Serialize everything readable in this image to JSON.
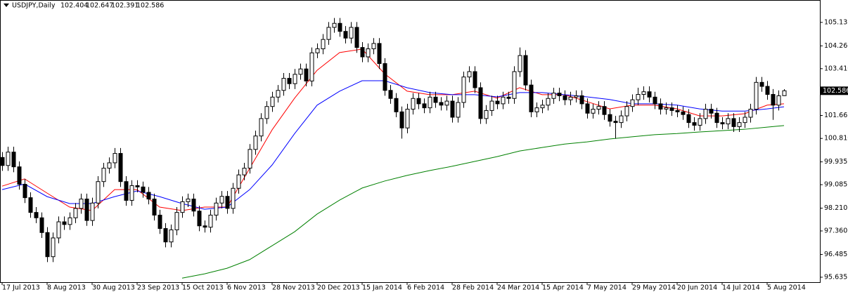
{
  "chart_data": {
    "type": "candlestick",
    "title": "USDJPY,Daily",
    "categories": [
      "17 Jul 2013",
      null,
      null,
      null,
      null,
      null,
      null,
      null,
      "8 Aug 2013",
      null,
      null,
      null,
      null,
      null,
      null,
      null,
      "30 Aug 2013",
      null,
      null,
      null,
      null,
      null,
      null,
      null,
      "23 Sep 2013",
      null,
      null,
      null,
      null,
      null,
      null,
      null,
      "15 Oct 2013",
      null,
      null,
      null,
      null,
      null,
      null,
      null,
      "6 Nov 2013",
      null,
      null,
      null,
      null,
      null,
      null,
      null,
      "28 Nov 2013",
      null,
      null,
      null,
      null,
      null,
      null,
      null,
      "20 Dec 2013",
      null,
      null,
      null,
      null,
      null,
      null,
      null,
      "15 Jan 2014",
      null,
      null,
      null,
      null,
      null,
      null,
      null,
      "6 Feb 2014",
      null,
      null,
      null,
      null,
      null,
      null,
      null,
      "28 Feb 2014",
      null,
      null,
      null,
      null,
      null,
      null,
      null,
      "24 Mar 2014",
      null,
      null,
      null,
      null,
      null,
      null,
      null,
      "15 Apr 2014",
      null,
      null,
      null,
      null,
      null,
      null,
      null,
      "7 May 2014",
      null,
      null,
      null,
      null,
      null,
      null,
      null,
      "29 May 2014",
      null,
      null,
      null,
      null,
      null,
      null,
      null,
      "20 Jun 2014",
      null,
      null,
      null,
      null,
      null,
      null,
      null,
      "14 Jul 2014",
      null,
      null,
      null,
      null,
      null,
      null,
      null,
      "5 Aug 2014",
      null,
      null,
      null
    ],
    "candles": [
      [
        100.1,
        100.3,
        99.6,
        99.8
      ],
      [
        99.8,
        100.5,
        99.6,
        100.3
      ],
      [
        100.3,
        100.5,
        99.55,
        99.75
      ],
      [
        99.75,
        99.95,
        98.9,
        99.1
      ],
      [
        99.1,
        99.3,
        98.4,
        98.6
      ],
      [
        98.6,
        98.8,
        97.85,
        98.05
      ],
      [
        98.05,
        98.25,
        97.65,
        97.85
      ],
      [
        97.85,
        98.05,
        97.1,
        97.3
      ],
      [
        97.3,
        97.5,
        96.2,
        96.4
      ],
      [
        96.4,
        97.3,
        96.2,
        97.1
      ],
      [
        97.1,
        97.9,
        96.9,
        97.7
      ],
      [
        97.7,
        97.9,
        97.4,
        97.6
      ],
      [
        97.6,
        98.05,
        97.4,
        97.85
      ],
      [
        97.85,
        98.4,
        97.65,
        98.2
      ],
      [
        98.2,
        98.75,
        98.0,
        98.55
      ],
      [
        98.55,
        98.75,
        97.55,
        97.75
      ],
      [
        97.75,
        98.6,
        97.55,
        98.4
      ],
      [
        98.4,
        99.4,
        98.2,
        99.2
      ],
      [
        99.2,
        99.9,
        99.0,
        99.7
      ],
      [
        99.7,
        100.1,
        99.5,
        99.9
      ],
      [
        99.9,
        100.45,
        99.7,
        100.25
      ],
      [
        100.25,
        100.45,
        99.0,
        99.2
      ],
      [
        99.2,
        99.4,
        98.3,
        98.5
      ],
      [
        98.5,
        99.25,
        98.3,
        99.05
      ],
      [
        99.05,
        99.25,
        98.8,
        99.0
      ],
      [
        99.0,
        99.2,
        98.6,
        98.8
      ],
      [
        98.8,
        99.0,
        98.35,
        98.55
      ],
      [
        98.55,
        98.75,
        97.75,
        97.95
      ],
      [
        97.95,
        98.15,
        97.25,
        97.45
      ],
      [
        97.45,
        97.65,
        96.75,
        96.95
      ],
      [
        96.95,
        97.6,
        96.75,
        97.4
      ],
      [
        97.4,
        98.25,
        97.2,
        98.05
      ],
      [
        98.05,
        98.65,
        97.85,
        98.45
      ],
      [
        98.45,
        98.75,
        98.25,
        98.55
      ],
      [
        98.55,
        98.75,
        97.9,
        98.1
      ],
      [
        98.1,
        98.3,
        97.35,
        97.55
      ],
      [
        97.55,
        97.75,
        97.3,
        97.5
      ],
      [
        97.5,
        98.15,
        97.3,
        97.95
      ],
      [
        97.95,
        98.6,
        97.75,
        98.4
      ],
      [
        98.4,
        98.85,
        98.2,
        98.65
      ],
      [
        98.65,
        98.85,
        98.0,
        98.2
      ],
      [
        98.2,
        99.15,
        98.0,
        98.95
      ],
      [
        98.95,
        99.65,
        98.75,
        99.45
      ],
      [
        99.45,
        99.9,
        99.25,
        99.7
      ],
      [
        99.7,
        100.6,
        99.5,
        100.4
      ],
      [
        100.4,
        101.1,
        100.2,
        100.9
      ],
      [
        100.9,
        101.75,
        100.7,
        101.55
      ],
      [
        101.55,
        102.2,
        101.35,
        102.0
      ],
      [
        102.0,
        102.55,
        101.8,
        102.35
      ],
      [
        102.35,
        102.8,
        102.15,
        102.6
      ],
      [
        102.6,
        103.25,
        102.4,
        103.05
      ],
      [
        103.05,
        103.25,
        102.65,
        102.85
      ],
      [
        102.85,
        103.4,
        102.65,
        103.2
      ],
      [
        103.2,
        103.6,
        103.0,
        103.4
      ],
      [
        103.4,
        103.6,
        102.75,
        102.95
      ],
      [
        102.95,
        104.2,
        102.75,
        104.0
      ],
      [
        104.0,
        104.35,
        103.8,
        104.15
      ],
      [
        104.15,
        104.7,
        103.95,
        104.5
      ],
      [
        104.5,
        105.15,
        104.3,
        104.95
      ],
      [
        104.95,
        105.3,
        104.75,
        105.1
      ],
      [
        105.1,
        105.3,
        104.6,
        104.8
      ],
      [
        104.8,
        105.0,
        104.35,
        104.55
      ],
      [
        104.55,
        105.15,
        104.35,
        104.95
      ],
      [
        104.95,
        105.15,
        104.0,
        104.2
      ],
      [
        104.2,
        104.4,
        103.65,
        103.85
      ],
      [
        103.85,
        104.35,
        103.65,
        104.15
      ],
      [
        104.15,
        104.55,
        103.95,
        104.35
      ],
      [
        104.35,
        104.55,
        103.4,
        103.6
      ],
      [
        103.6,
        103.8,
        102.4,
        102.6
      ],
      [
        102.6,
        102.8,
        102.1,
        102.3
      ],
      [
        102.3,
        102.5,
        101.6,
        101.8
      ],
      [
        101.8,
        102.0,
        100.8,
        101.2
      ],
      [
        101.2,
        102.1,
        101.0,
        101.9
      ],
      [
        101.9,
        102.5,
        101.7,
        102.3
      ],
      [
        102.3,
        102.5,
        101.9,
        102.1
      ],
      [
        102.1,
        102.3,
        101.75,
        101.95
      ],
      [
        101.95,
        102.55,
        101.75,
        102.35
      ],
      [
        102.35,
        102.55,
        101.95,
        102.15
      ],
      [
        102.15,
        102.35,
        101.85,
        102.05
      ],
      [
        102.05,
        102.4,
        101.85,
        102.2
      ],
      [
        102.2,
        102.4,
        101.4,
        101.6
      ],
      [
        101.6,
        102.35,
        101.4,
        102.15
      ],
      [
        102.15,
        103.3,
        101.95,
        103.1
      ],
      [
        103.1,
        103.5,
        102.9,
        103.3
      ],
      [
        103.3,
        103.5,
        102.5,
        102.7
      ],
      [
        102.7,
        102.9,
        101.35,
        101.55
      ],
      [
        101.55,
        102.05,
        101.35,
        101.85
      ],
      [
        101.85,
        102.4,
        101.65,
        102.2
      ],
      [
        102.2,
        102.4,
        101.9,
        102.1
      ],
      [
        102.1,
        102.55,
        101.9,
        102.35
      ],
      [
        102.35,
        102.55,
        102.1,
        102.3
      ],
      [
        102.3,
        103.5,
        102.1,
        103.3
      ],
      [
        103.3,
        104.2,
        103.1,
        103.9
      ],
      [
        103.9,
        104.1,
        102.6,
        102.8
      ],
      [
        102.8,
        103.0,
        101.6,
        101.8
      ],
      [
        101.8,
        102.15,
        101.6,
        101.95
      ],
      [
        101.95,
        102.25,
        101.75,
        102.05
      ],
      [
        102.05,
        102.5,
        101.85,
        102.3
      ],
      [
        102.3,
        102.7,
        102.1,
        102.5
      ],
      [
        102.5,
        102.7,
        102.2,
        102.4
      ],
      [
        102.4,
        102.6,
        102.05,
        102.25
      ],
      [
        102.25,
        102.55,
        102.05,
        102.35
      ],
      [
        102.35,
        102.6,
        102.15,
        102.4
      ],
      [
        102.4,
        102.6,
        101.9,
        102.1
      ],
      [
        102.1,
        102.3,
        101.55,
        101.75
      ],
      [
        101.75,
        102.1,
        101.55,
        101.9
      ],
      [
        101.9,
        102.2,
        101.7,
        102.0
      ],
      [
        102.0,
        102.2,
        101.5,
        101.7
      ],
      [
        101.7,
        101.9,
        101.25,
        101.45
      ],
      [
        101.45,
        101.65,
        100.8,
        101.4
      ],
      [
        101.4,
        101.85,
        101.2,
        101.65
      ],
      [
        101.65,
        102.2,
        101.45,
        102.0
      ],
      [
        102.0,
        102.45,
        101.8,
        102.25
      ],
      [
        102.25,
        102.7,
        102.05,
        102.45
      ],
      [
        102.45,
        102.75,
        102.25,
        102.55
      ],
      [
        102.55,
        102.75,
        102.15,
        102.35
      ],
      [
        102.35,
        102.55,
        101.9,
        102.1
      ],
      [
        102.1,
        102.3,
        101.7,
        101.9
      ],
      [
        101.9,
        102.15,
        101.7,
        101.95
      ],
      [
        101.95,
        102.15,
        101.65,
        101.85
      ],
      [
        101.85,
        102.05,
        101.6,
        101.8
      ],
      [
        101.8,
        102.0,
        101.5,
        101.7
      ],
      [
        101.7,
        101.9,
        101.2,
        101.4
      ],
      [
        101.4,
        101.6,
        101.1,
        101.3
      ],
      [
        101.3,
        101.75,
        101.1,
        101.55
      ],
      [
        101.55,
        102.1,
        101.35,
        101.9
      ],
      [
        101.9,
        102.1,
        101.55,
        101.75
      ],
      [
        101.75,
        101.95,
        101.2,
        101.4
      ],
      [
        101.4,
        101.6,
        101.15,
        101.35
      ],
      [
        101.35,
        101.75,
        101.15,
        101.55
      ],
      [
        101.55,
        101.75,
        101.05,
        101.25
      ],
      [
        101.25,
        101.6,
        101.05,
        101.4
      ],
      [
        101.4,
        101.8,
        101.2,
        101.6
      ],
      [
        101.6,
        102.1,
        101.4,
        101.9
      ],
      [
        101.9,
        103.1,
        101.7,
        102.9
      ],
      [
        102.9,
        103.1,
        102.55,
        102.75
      ],
      [
        102.75,
        102.95,
        102.25,
        102.45
      ],
      [
        102.45,
        102.65,
        101.5,
        102.05
      ],
      [
        102.05,
        102.6,
        101.85,
        102.4
      ],
      [
        102.404,
        102.647,
        102.391,
        102.586
      ]
    ],
    "lines": {
      "x": [
        0,
        4,
        8,
        12,
        16,
        20,
        24,
        28,
        32,
        36,
        40,
        44,
        48,
        52,
        56,
        60,
        64,
        68,
        72,
        76,
        80,
        84,
        88,
        92,
        96,
        100,
        104,
        108,
        112,
        116,
        120,
        124,
        128,
        132,
        136,
        139
      ],
      "series": [
        {
          "color": "#ff0000",
          "values": [
            99.03,
            99.3,
            98.77,
            98.25,
            98.12,
            98.9,
            98.9,
            98.25,
            98.12,
            98.25,
            98.25,
            99.69,
            101.13,
            102.31,
            103.35,
            104.01,
            104.14,
            103.22,
            102.57,
            102.44,
            102.44,
            102.57,
            102.31,
            102.7,
            102.44,
            102.44,
            102.18,
            101.91,
            102.05,
            102.05,
            101.91,
            101.65,
            101.65,
            101.73,
            102.05,
            102.1
          ]
        },
        {
          "color": "#0000ff",
          "values": [
            98.9,
            99.11,
            98.64,
            98.38,
            98.38,
            98.64,
            98.85,
            98.64,
            98.38,
            98.17,
            98.25,
            98.9,
            99.82,
            100.99,
            102.05,
            102.57,
            102.96,
            102.96,
            102.7,
            102.52,
            102.44,
            102.44,
            102.36,
            102.52,
            102.52,
            102.44,
            102.36,
            102.26,
            102.1,
            102.1,
            102.05,
            101.91,
            101.83,
            101.83,
            101.91,
            101.99
          ]
        },
        {
          "color": "#008000",
          "values": [
            null,
            null,
            null,
            null,
            null,
            null,
            null,
            null,
            95.6,
            95.76,
            95.97,
            96.29,
            96.81,
            97.33,
            97.99,
            98.51,
            98.96,
            99.22,
            99.43,
            99.61,
            99.77,
            99.95,
            100.13,
            100.34,
            100.47,
            100.6,
            100.68,
            100.79,
            100.87,
            100.95,
            100.99,
            101.05,
            101.1,
            101.15,
            101.23,
            101.29
          ]
        }
      ]
    },
    "ylim": [
      95.45,
      105.97
    ],
    "yticks": [
      105.135,
      {
        "value": 104.26,
        "label": "104.260"
      },
      {
        "value": 103.41,
        "label": "103.410"
      },
      101.665,
      {
        "value": 100.81,
        "label": "100.810"
      },
      99.935,
      99.085,
      {
        "value": 98.21,
        "label": "98.210"
      },
      {
        "value": 97.36,
        "label": "97.360"
      },
      96.485,
      95.635
    ],
    "grid": false
  }
}
